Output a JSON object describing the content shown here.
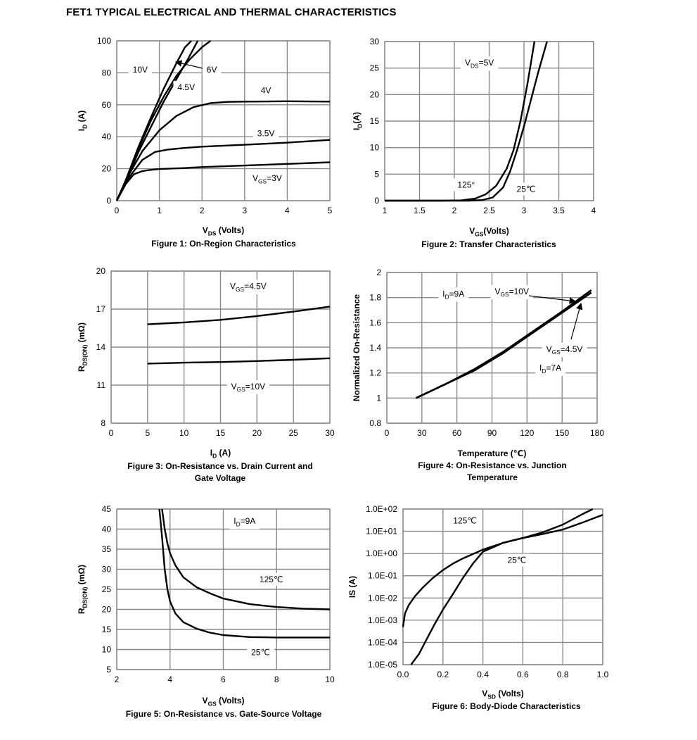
{
  "page_title": "FET1 TYPICAL ELECTRICAL AND THERMAL CHARACTERISTICS",
  "chart_data": [
    {
      "type": "line",
      "caption": "Figure 1: On-Region Characteristics",
      "xlabel": {
        "main": "V",
        "sub": "DS",
        "rest": " (Volts)"
      },
      "ylabel": {
        "main": "I",
        "sub": "D",
        "rest": " (A)"
      },
      "xlim": [
        0,
        5
      ],
      "ylim": [
        0,
        100
      ],
      "xticks": [
        0,
        1,
        2,
        3,
        4,
        5
      ],
      "yticks": [
        0,
        20,
        40,
        60,
        80,
        100
      ],
      "grid": true,
      "series": [
        {
          "name": "10V",
          "x": [
            0,
            0.2,
            0.5,
            0.8,
            1.1,
            1.4,
            1.6,
            1.75
          ],
          "y": [
            0,
            12,
            33,
            52,
            70,
            86,
            96,
            100
          ]
        },
        {
          "name": "6V",
          "x": [
            0,
            0.2,
            0.5,
            0.8,
            1.1,
            1.4,
            1.7,
            2.0,
            2.2
          ],
          "y": [
            0,
            12,
            32,
            50,
            65,
            78,
            88,
            96,
            100
          ]
        },
        {
          "name": "4.5V",
          "x": [
            0,
            0.2,
            0.5,
            0.8,
            1.1,
            1.4,
            1.7,
            1.9
          ],
          "y": [
            0,
            11,
            30,
            46,
            62,
            76,
            90,
            100
          ]
        },
        {
          "name": "4V",
          "x": [
            0,
            0.3,
            0.6,
            1.0,
            1.4,
            1.8,
            2.2,
            2.6,
            3.0,
            4.0,
            5.0
          ],
          "y": [
            0,
            17,
            31,
            44,
            53,
            58.5,
            61,
            61.8,
            62,
            62.2,
            62
          ]
        },
        {
          "name": "3.5V",
          "x": [
            0,
            0.3,
            0.6,
            0.9,
            1.2,
            1.6,
            2.0,
            3.0,
            4.0,
            5.0
          ],
          "y": [
            0,
            15,
            25.5,
            30.5,
            32,
            33,
            33.8,
            35,
            36.3,
            38
          ]
        },
        {
          "name": "3V",
          "x": [
            0,
            0.2,
            0.4,
            0.6,
            0.8,
            1.0,
            1.5,
            2.0,
            3.0,
            4.0,
            5.0
          ],
          "y": [
            0,
            10,
            16.5,
            18.5,
            19.3,
            19.8,
            20.3,
            21,
            22,
            23,
            24
          ]
        }
      ],
      "annotations": [
        {
          "text": "10V",
          "x": 0.55,
          "y": 82
        },
        {
          "text": "6V",
          "x": 2.23,
          "y": 82
        },
        {
          "text": "4.5V",
          "x": 1.63,
          "y": 71
        },
        {
          "text": "4V",
          "x": 3.5,
          "y": 69
        },
        {
          "text": "3.5V",
          "x": 3.5,
          "y": 42
        },
        {
          "text": "V",
          "sub": "GS",
          "rest": "=3V",
          "x": 3.53,
          "y": 14
        }
      ]
    },
    {
      "type": "line",
      "caption": "Figure 2: Transfer Characteristics",
      "xlabel": {
        "main": "V",
        "sub": "GS",
        "rest": "(Volts)"
      },
      "ylabel": {
        "main": "I",
        "sub": "D",
        "rest": "(A)"
      },
      "xlim": [
        1,
        4
      ],
      "ylim": [
        0,
        30
      ],
      "xticks": [
        1,
        1.5,
        2,
        2.5,
        3,
        3.5,
        4
      ],
      "yticks": [
        0,
        5,
        10,
        15,
        20,
        25,
        30
      ],
      "xticklabels": [
        "1",
        "1.5",
        "2",
        "2.5",
        "3",
        "3.5",
        "4"
      ],
      "grid": true,
      "series": [
        {
          "name": "125°",
          "x": [
            1.0,
            1.8,
            2.1,
            2.3,
            2.45,
            2.6,
            2.75,
            2.85,
            2.95,
            3.05,
            3.15
          ],
          "y": [
            0,
            0,
            0.05,
            0.4,
            1.2,
            2.8,
            6,
            9.5,
            15,
            22,
            30
          ]
        },
        {
          "name": "25℃",
          "x": [
            1.0,
            2.2,
            2.4,
            2.55,
            2.7,
            2.8,
            2.9,
            3.0,
            3.1,
            3.2,
            3.33
          ],
          "y": [
            0,
            0,
            0.1,
            0.6,
            2.5,
            5.5,
            9.5,
            14,
            19,
            24,
            30
          ]
        }
      ],
      "annotations": [
        {
          "text": "V",
          "sub": "DS",
          "rest": "=5V",
          "x": 2.36,
          "y": 26
        },
        {
          "text": "125°",
          "x": 2.17,
          "y": 3
        },
        {
          "text": "25℃",
          "x": 3.03,
          "y": 2.2
        }
      ]
    },
    {
      "type": "line",
      "caption": "Figure 3: On-Resistance vs. Drain Current and",
      "caption2": "Gate Voltage",
      "xlabel": {
        "main": "I",
        "sub": "D",
        "rest": " (A)"
      },
      "ylabel": {
        "main": "R",
        "sub": "DS(ON)",
        "rest": " (mΩ)"
      },
      "xlim": [
        0,
        30
      ],
      "ylim": [
        8,
        20
      ],
      "xticks": [
        0,
        5,
        10,
        15,
        20,
        25,
        30
      ],
      "yticks": [
        8,
        11,
        14,
        17,
        20
      ],
      "grid": true,
      "series": [
        {
          "name": "V_GS=4.5V",
          "x": [
            5,
            10,
            15,
            20,
            25,
            30
          ],
          "y": [
            15.8,
            15.95,
            16.15,
            16.45,
            16.8,
            17.2
          ]
        },
        {
          "name": "V_GS=10V",
          "x": [
            5,
            10,
            15,
            20,
            25,
            30
          ],
          "y": [
            12.7,
            12.77,
            12.82,
            12.9,
            13.0,
            13.12
          ]
        }
      ],
      "annotations": [
        {
          "text": "V",
          "sub": "GS",
          "rest": "=4.5V",
          "x": 18.8,
          "y": 18.8
        },
        {
          "text": "V",
          "sub": "GS",
          "rest": "=10V",
          "x": 18.8,
          "y": 10.9
        }
      ]
    },
    {
      "type": "line",
      "caption": "Figure 4: On-Resistance vs. Junction",
      "caption2": "Temperature",
      "xlabel": {
        "main": "Temperature (℃)",
        "sub": "",
        "rest": ""
      },
      "ylabel": {
        "main": "Normalized On-Resistance",
        "sub": "",
        "rest": ""
      },
      "xlim": [
        0,
        180
      ],
      "ylim": [
        0.8,
        2
      ],
      "xticks": [
        0,
        30,
        60,
        90,
        120,
        150,
        180
      ],
      "yticks": [
        0.8,
        1,
        1.2,
        1.4,
        1.6,
        1.8,
        2
      ],
      "yticklabels": [
        "0.8",
        "1",
        "1.2",
        "1.4",
        "1.6",
        "1.8",
        "2"
      ],
      "grid": true,
      "series": [
        {
          "name": "V_GS=10V",
          "x": [
            25,
            50,
            75,
            100,
            125,
            150,
            175
          ],
          "y": [
            1.0,
            1.11,
            1.23,
            1.37,
            1.53,
            1.69,
            1.86
          ]
        },
        {
          "name": "V_GS=4.5V",
          "x": [
            25,
            50,
            75,
            100,
            125,
            150,
            175
          ],
          "y": [
            1.0,
            1.11,
            1.22,
            1.36,
            1.52,
            1.68,
            1.84
          ]
        }
      ],
      "annotations": [
        {
          "text": "I",
          "sub": "D",
          "rest": "=9A",
          "x": 57,
          "y": 1.83
        },
        {
          "text": "V",
          "sub": "GS",
          "rest": "=10V",
          "x": 107,
          "y": 1.85
        },
        {
          "text": "V",
          "sub": "GS",
          "rest": "=4.5V",
          "x": 152,
          "y": 1.39
        },
        {
          "text": "I",
          "sub": "D",
          "rest": "=7A",
          "x": 140,
          "y": 1.24
        }
      ]
    },
    {
      "type": "line",
      "caption": "Figure 5: On-Resistance vs. Gate-Source Voltage",
      "xlabel": {
        "main": "V",
        "sub": "GS",
        "rest": " (Volts)"
      },
      "ylabel": {
        "main": "R",
        "sub": "DS(ON)",
        "rest": " (mΩ)"
      },
      "xlim": [
        2,
        10
      ],
      "ylim": [
        5,
        45
      ],
      "xticks": [
        2,
        4,
        6,
        8,
        10
      ],
      "yticks": [
        5,
        10,
        15,
        20,
        25,
        30,
        35,
        40,
        45
      ],
      "grid": true,
      "series": [
        {
          "name": "125℃",
          "x": [
            3.7,
            3.8,
            3.9,
            4.0,
            4.2,
            4.5,
            5.0,
            5.5,
            6.0,
            7.0,
            8.0,
            9.0,
            10.0
          ],
          "y": [
            45,
            40,
            36.5,
            34,
            31,
            28,
            25.5,
            24,
            22.7,
            21.3,
            20.6,
            20.2,
            20
          ]
        },
        {
          "name": "25℃",
          "x": [
            3.6,
            3.7,
            3.8,
            3.9,
            4.0,
            4.2,
            4.5,
            5.0,
            5.5,
            6.0,
            7.0,
            8.0,
            9.0,
            10.0
          ],
          "y": [
            45,
            38,
            30,
            25,
            22,
            19,
            16.8,
            15.2,
            14.2,
            13.6,
            13.1,
            13.0,
            13.0,
            13.0
          ]
        }
      ],
      "annotations": [
        {
          "text": "I",
          "sub": "D",
          "rest": "=9A",
          "x": 6.8,
          "y": 42
        },
        {
          "text": "125℃",
          "x": 7.8,
          "y": 27.5
        },
        {
          "text": "25℃",
          "x": 7.4,
          "y": 9.3
        }
      ]
    },
    {
      "type": "line",
      "caption": "Figure 6: Body-Diode Characteristics",
      "xlabel": {
        "main": "V",
        "sub": "SD",
        "rest": " (Volts)"
      },
      "ylabel": {
        "main": "IS (A)",
        "sub": "",
        "rest": ""
      },
      "xlim": [
        0,
        1.0
      ],
      "ylim": [
        1e-05,
        100
      ],
      "yscale": "log",
      "xticks": [
        0,
        0.2,
        0.4,
        0.6,
        0.8,
        1.0
      ],
      "yticks": [
        1e-05,
        0.0001,
        0.001,
        0.01,
        0.1,
        1,
        10,
        100
      ],
      "xticklabels": [
        "0.0",
        "0.2",
        "0.4",
        "0.6",
        "0.8",
        "1.0"
      ],
      "yticklabels": [
        "1.0E-05",
        "1.0E-04",
        "1.0E-03",
        "1.0E-02",
        "1.0E-01",
        "1.0E+00",
        "1.0E+01",
        "1.0E+02"
      ],
      "grid": true,
      "series": [
        {
          "name": "125℃",
          "x": [
            0.0,
            0.01,
            0.03,
            0.06,
            0.1,
            0.15,
            0.2,
            0.25,
            0.3,
            0.4,
            0.5,
            0.6,
            0.7,
            0.8,
            0.9,
            0.95
          ],
          "y": [
            0.0005,
            0.002,
            0.005,
            0.012,
            0.03,
            0.08,
            0.18,
            0.35,
            0.6,
            1.5,
            3,
            5,
            9,
            20,
            60,
            100
          ]
        },
        {
          "name": "25℃",
          "x": [
            0.04,
            0.08,
            0.12,
            0.16,
            0.2,
            0.25,
            0.3,
            0.35,
            0.4,
            0.5,
            0.6,
            0.7,
            0.8,
            0.9,
            1.0
          ],
          "y": [
            1e-05,
            3e-05,
            0.00015,
            0.0007,
            0.003,
            0.015,
            0.08,
            0.35,
            1.2,
            3.0,
            5.0,
            7.5,
            12,
            25,
            55
          ]
        }
      ],
      "annotations": [
        {
          "text": "125℃",
          "x": 0.31,
          "y": 30
        },
        {
          "text": "25℃",
          "x": 0.57,
          "y": 0.5
        }
      ]
    }
  ]
}
